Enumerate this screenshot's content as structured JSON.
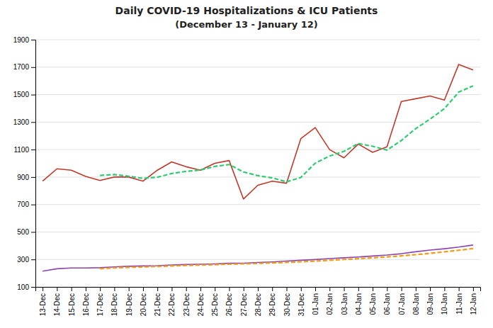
{
  "chart_data": {
    "type": "line",
    "title": "Daily COVID-19 Hospitalizations & ICU Patients",
    "subtitle": "(December 13 - January 12)",
    "categories": [
      "13-Dec",
      "14-Dec",
      "15-Dec",
      "16-Dec",
      "17-Dec",
      "18-Dec",
      "19-Dec",
      "20-Dec",
      "21-Dec",
      "22-Dec",
      "23-Dec",
      "24-Dec",
      "25-Dec",
      "26-Dec",
      "27-Dec",
      "28-Dec",
      "29-Dec",
      "30-Dec",
      "31-Dec",
      "01-Jan",
      "02-Jan",
      "03-Jan",
      "04-Jan",
      "05-Jan",
      "06-Jan",
      "07-Jan",
      "08-Jan",
      "09-Jan",
      "10-Jan",
      "11-Jan",
      "12-Jan"
    ],
    "series": [
      {
        "color": "#c0392b",
        "line_style": "solid",
        "values": [
          870,
          960,
          950,
          905,
          875,
          900,
          900,
          870,
          950,
          1010,
          975,
          950,
          1000,
          1020,
          740,
          840,
          870,
          855,
          1180,
          1260,
          1100,
          1040,
          1140,
          1080,
          1120,
          1450,
          1470,
          1490,
          1460,
          1720,
          1680
        ]
      },
      {
        "color": "#2ecc71",
        "line_style": "dashed",
        "values": [
          null,
          null,
          null,
          null,
          912,
          918,
          906,
          890,
          899,
          926,
          941,
          951,
          977,
          991,
          937,
          910,
          894,
          865,
          897,
          1001,
          1053,
          1087,
          1144,
          1124,
          1096,
          1166,
          1252,
          1322,
          1398,
          1518,
          1564
        ]
      },
      {
        "color": "#8e44ad",
        "line_style": "solid",
        "values": [
          215,
          232,
          238,
          238,
          240,
          246,
          250,
          253,
          255,
          260,
          263,
          265,
          268,
          272,
          273,
          278,
          282,
          288,
          294,
          299,
          306,
          312,
          318,
          325,
          332,
          342,
          356,
          368,
          378,
          390,
          405
        ]
      },
      {
        "color": "#f39c12",
        "line_style": "dashed",
        "values": [
          null,
          null,
          null,
          null,
          232.6,
          238.8,
          242.4,
          245.4,
          248.8,
          252.8,
          256.2,
          259.2,
          262.2,
          265.6,
          268.2,
          271.2,
          274.6,
          278.6,
          283,
          288.2,
          293.8,
          299.8,
          305.8,
          312,
          318.6,
          325.8,
          334.6,
          344.6,
          355.2,
          366.8,
          379.4
        ]
      }
    ],
    "ylim": [
      100,
      1900
    ],
    "yticks": [
      100,
      300,
      500,
      700,
      900,
      1100,
      1300,
      1500,
      1700,
      1900
    ],
    "grid": true
  }
}
